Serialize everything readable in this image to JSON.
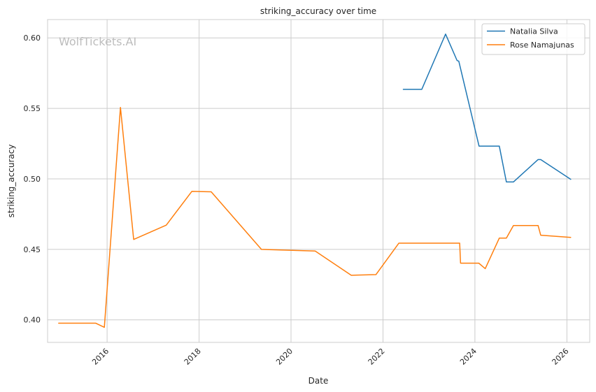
{
  "watermark": "WolfTickets.AI",
  "chart_data": {
    "type": "line",
    "title": "striking_accuracy over time",
    "xlabel": "Date",
    "ylabel": "striking_accuracy",
    "xlim": [
      "2014-09-15",
      "2026-07-01"
    ],
    "ylim": [
      0.384,
      0.613
    ],
    "x_ticks": [
      "2016-01-01",
      "2018-01-01",
      "2020-01-01",
      "2022-01-01",
      "2024-01-01",
      "2026-01-01"
    ],
    "x_tick_labels": [
      "2016",
      "2018",
      "2020",
      "2022",
      "2024",
      "2026"
    ],
    "y_ticks": [
      0.4,
      0.45,
      0.5,
      0.55,
      0.6
    ],
    "y_tick_labels": [
      "0.40",
      "0.45",
      "0.50",
      "0.55",
      "0.60"
    ],
    "grid": true,
    "legend_position": "top-right",
    "series": [
      {
        "name": "Natalia Silva",
        "color": "#1f77b4",
        "points": [
          [
            "2022-06-11",
            0.5635
          ],
          [
            "2022-11-05",
            0.5635
          ],
          [
            "2023-05-13",
            0.6027
          ],
          [
            "2023-08-12",
            0.584
          ],
          [
            "2023-08-26",
            0.5835
          ],
          [
            "2024-02-03",
            0.5232
          ],
          [
            "2024-07-13",
            0.5232
          ],
          [
            "2024-09-07",
            0.4978
          ],
          [
            "2024-11-02",
            0.4978
          ],
          [
            "2025-05-17",
            0.5137
          ],
          [
            "2025-06-07",
            0.5137
          ],
          [
            "2026-01-31",
            0.4997
          ]
        ]
      },
      {
        "name": "Rose Namajunas",
        "color": "#ff7f0e",
        "points": [
          [
            "2014-12-12",
            0.3976
          ],
          [
            "2015-10-03",
            0.3976
          ],
          [
            "2015-12-10",
            0.3947
          ],
          [
            "2016-04-16",
            0.5507
          ],
          [
            "2016-07-30",
            0.457
          ],
          [
            "2017-04-15",
            0.4672
          ],
          [
            "2017-11-04",
            0.4911
          ],
          [
            "2018-04-07",
            0.4908
          ],
          [
            "2019-05-11",
            0.45
          ],
          [
            "2020-07-11",
            0.4488
          ],
          [
            "2021-04-24",
            0.4316
          ],
          [
            "2021-11-06",
            0.4321
          ],
          [
            "2022-05-07",
            0.4544
          ],
          [
            "2023-09-02",
            0.4544
          ],
          [
            "2023-09-09",
            0.4402
          ],
          [
            "2024-02-01",
            0.4402
          ],
          [
            "2024-03-23",
            0.4363
          ],
          [
            "2024-07-13",
            0.458
          ],
          [
            "2024-09-07",
            0.458
          ],
          [
            "2024-11-02",
            0.4669
          ],
          [
            "2025-05-17",
            0.4669
          ],
          [
            "2025-06-07",
            0.46
          ],
          [
            "2026-01-31",
            0.4585
          ]
        ]
      }
    ]
  }
}
